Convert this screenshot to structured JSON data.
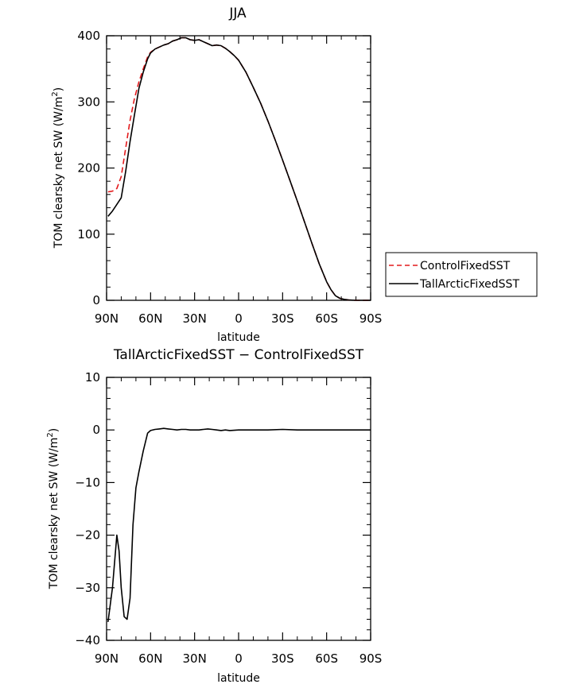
{
  "chart_data": [
    {
      "type": "line",
      "title": "JJA",
      "xlabel": "latitude",
      "ylabel": "TOM clearsky net SW (W/m",
      "ylabel_sup": "2",
      "ylabel_close": ")",
      "xlim": [
        90,
        -90
      ],
      "ylim": [
        0,
        400
      ],
      "xticks": [
        90,
        60,
        30,
        0,
        -30,
        -60,
        -90
      ],
      "xtick_labels": [
        "90N",
        "60N",
        "30N",
        "0",
        "30S",
        "60S",
        "90S"
      ],
      "yticks": [
        0,
        100,
        200,
        300,
        400
      ],
      "ytick_labels": [
        "0",
        "100",
        "200",
        "300",
        "400"
      ],
      "legend": {
        "position": "right"
      },
      "series": [
        {
          "name": "ControlFixedSST",
          "color": "#e41a1c",
          "dash": "dashed",
          "x": [
            89,
            86,
            83,
            80,
            77,
            74,
            71,
            68,
            65,
            62,
            60,
            57,
            54,
            51,
            48,
            45,
            42,
            39,
            36,
            33,
            30,
            27,
            24,
            21,
            18,
            15,
            12,
            9,
            6,
            3,
            0,
            -5,
            -10,
            -15,
            -20,
            -25,
            -30,
            -35,
            -40,
            -45,
            -50,
            -55,
            -60,
            -63,
            -66,
            -69,
            -72,
            -75,
            -80,
            -85,
            -90
          ],
          "y": [
            164,
            165,
            169,
            187,
            230,
            272,
            305,
            330,
            350,
            368,
            375,
            380,
            383,
            386,
            388,
            392,
            394,
            397,
            397,
            394,
            393,
            394,
            391,
            388,
            385,
            386,
            385,
            381,
            376,
            370,
            363,
            345,
            322,
            298,
            271,
            242,
            212,
            181,
            150,
            118,
            86,
            55,
            28,
            16,
            7,
            3,
            1.5,
            0.5,
            0,
            0,
            0
          ]
        },
        {
          "name": "TallArcticFixedSST",
          "color": "#000000",
          "dash": "solid",
          "x": [
            89,
            86,
            83,
            80,
            77,
            74,
            71,
            68,
            65,
            62,
            60,
            57,
            54,
            51,
            48,
            45,
            42,
            39,
            36,
            33,
            30,
            27,
            24,
            21,
            18,
            15,
            12,
            9,
            6,
            3,
            0,
            -5,
            -10,
            -15,
            -20,
            -25,
            -30,
            -35,
            -40,
            -45,
            -50,
            -55,
            -60,
            -63,
            -66,
            -69,
            -72,
            -75,
            -80,
            -85,
            -90
          ],
          "y": [
            127,
            135,
            145,
            155,
            195,
            240,
            280,
            320,
            345,
            365,
            374,
            380,
            383,
            386,
            388,
            392,
            394,
            397,
            397,
            394,
            393,
            394,
            391,
            388,
            385,
            386,
            385,
            381,
            376,
            370,
            363,
            345,
            322,
            298,
            271,
            242,
            212,
            181,
            150,
            118,
            86,
            55,
            28,
            16,
            7,
            3,
            1.5,
            0.5,
            0,
            0,
            0
          ]
        }
      ]
    },
    {
      "type": "line",
      "title": "TallArcticFixedSST − ControlFixedSST",
      "xlabel": "latitude",
      "ylabel": "TOM clearsky net SW (W/m",
      "ylabel_sup": "2",
      "ylabel_close": ")",
      "xlim": [
        90,
        -90
      ],
      "ylim": [
        -40,
        10
      ],
      "xticks": [
        90,
        60,
        30,
        0,
        -30,
        -60,
        -90
      ],
      "xtick_labels": [
        "90N",
        "60N",
        "30N",
        "0",
        "30S",
        "60S",
        "90S"
      ],
      "yticks": [
        10,
        0,
        -10,
        -20,
        -30,
        -40
      ],
      "ytick_labels": [
        "10",
        "0",
        "−10",
        "−20",
        "−30",
        "−40"
      ],
      "series": [
        {
          "name": "",
          "color": "#000000",
          "dash": "solid",
          "x": [
            89,
            86,
            83,
            81.5,
            80,
            78,
            76,
            74,
            72,
            70,
            68,
            65,
            62,
            60,
            57,
            54,
            51,
            48,
            45,
            42,
            39,
            36,
            33,
            30,
            27,
            24,
            21,
            18,
            15,
            12,
            9,
            6,
            0,
            -10,
            -20,
            -30,
            -40,
            -50,
            -60,
            -70,
            -80,
            -90
          ],
          "y": [
            -36.5,
            -30,
            -20,
            -23,
            -30,
            -35.5,
            -36,
            -32,
            -18,
            -11,
            -8,
            -4,
            -0.6,
            -0.1,
            0.1,
            0.2,
            0.3,
            0.2,
            0.1,
            0.0,
            0.1,
            0.1,
            0.0,
            0.0,
            0.0,
            0.1,
            0.2,
            0.1,
            0.0,
            -0.1,
            0.0,
            -0.1,
            0.0,
            0.0,
            0.0,
            0.1,
            0.0,
            0.0,
            0.0,
            0.0,
            0.0,
            0.0
          ]
        }
      ]
    }
  ]
}
